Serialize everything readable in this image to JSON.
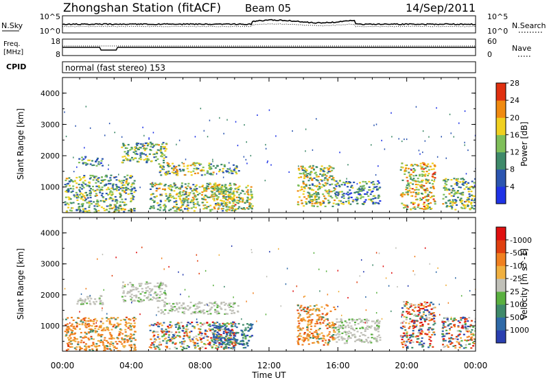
{
  "header": {
    "station": "Zhongshan Station (fitACF)",
    "beam": "Beam 05",
    "date": "14/Sep/2011"
  },
  "nsky_panel": {
    "left_label": "N.Sky",
    "right_label": "N.Search",
    "left_ticks": [
      "10^5",
      "10^0"
    ],
    "right_ticks": [
      "10^5",
      "10^0"
    ]
  },
  "freq_panel": {
    "left_label_line1": "Freq.",
    "left_label_line2": "[MHz]",
    "right_label": "Nave",
    "left_ticks": [
      "18",
      "8"
    ],
    "right_ticks": [
      "60",
      "0"
    ]
  },
  "cpid_panel": {
    "label": "CPID",
    "text": "normal (fast stereo) 153"
  },
  "time_axis": {
    "label": "Time UT",
    "ticks": [
      "00:00",
      "04:00",
      "08:00",
      "12:00",
      "16:00",
      "20:00",
      "00:00"
    ]
  },
  "range_axis": {
    "label": "Slant Range [km]",
    "ticks": [
      "1000",
      "2000",
      "3000",
      "4000"
    ]
  },
  "chart_data": [
    {
      "type": "heatmap",
      "quantity": "Power",
      "colorbar_label": "Power [dB]",
      "colorbar_ticks": [
        "4",
        "8",
        "12",
        "16",
        "20",
        "24",
        "28"
      ],
      "colorbar_colors": [
        "#1f33e6",
        "#2b55b0",
        "#3f8a6a",
        "#7fbf5a",
        "#f0d020",
        "#f08a10",
        "#e03010"
      ],
      "x_range_hours": [
        0,
        24
      ],
      "y_range_km": [
        180,
        4500
      ],
      "echo_regions": [
        {
          "t_start": 0.1,
          "t_end": 4.2,
          "r_min": 200,
          "r_max": 1400,
          "level": 0.45
        },
        {
          "t_start": 0.8,
          "t_end": 2.3,
          "r_min": 1700,
          "r_max": 2000,
          "level": 0.35
        },
        {
          "t_start": 3.4,
          "t_end": 6.0,
          "r_min": 1800,
          "r_max": 2450,
          "level": 0.45
        },
        {
          "t_start": 5.5,
          "t_end": 8.8,
          "r_min": 1400,
          "r_max": 1800,
          "level": 0.5
        },
        {
          "t_start": 8.8,
          "t_end": 10.2,
          "r_min": 1450,
          "r_max": 1750,
          "level": 0.35
        },
        {
          "t_start": 5.0,
          "t_end": 10.0,
          "r_min": 250,
          "r_max": 1150,
          "level": 0.5
        },
        {
          "t_start": 8.6,
          "t_end": 11.0,
          "r_min": 300,
          "r_max": 1100,
          "level": 0.6
        },
        {
          "t_start": 13.6,
          "t_end": 15.8,
          "r_min": 400,
          "r_max": 1700,
          "level": 0.55
        },
        {
          "t_start": 15.8,
          "t_end": 18.4,
          "r_min": 450,
          "r_max": 1250,
          "level": 0.35
        },
        {
          "t_start": 19.6,
          "t_end": 21.6,
          "r_min": 300,
          "r_max": 1800,
          "level": 0.65
        },
        {
          "t_start": 22.0,
          "t_end": 24.0,
          "r_min": 300,
          "r_max": 1300,
          "level": 0.45
        }
      ]
    },
    {
      "type": "heatmap",
      "quantity": "Velocity",
      "colorbar_label": "Velocity [m s^-1]",
      "colorbar_ticks": [
        "1000",
        "500",
        "100",
        "25",
        "-25",
        "-100",
        "-500",
        "-1000"
      ],
      "colorbar_colors": [
        "#2a3fb0",
        "#2f6aa8",
        "#3f8a6a",
        "#5ab040",
        "#c0c0b8",
        "#f0b040",
        "#f08020",
        "#e04010",
        "#e01010"
      ],
      "x_range_hours": [
        0,
        24
      ],
      "y_range_km": [
        180,
        4500
      ],
      "echo_regions": [
        {
          "t_start": 0.1,
          "t_end": 4.2,
          "r_min": 200,
          "r_max": 1300,
          "level": "negative"
        },
        {
          "t_start": 0.8,
          "t_end": 2.3,
          "r_min": 1700,
          "r_max": 2000,
          "level": "ground"
        },
        {
          "t_start": 3.4,
          "t_end": 6.0,
          "r_min": 1800,
          "r_max": 2450,
          "level": "ground"
        },
        {
          "t_start": 5.5,
          "t_end": 10.2,
          "r_min": 1400,
          "r_max": 1800,
          "level": "ground"
        },
        {
          "t_start": 5.0,
          "t_end": 10.0,
          "r_min": 250,
          "r_max": 1150,
          "level": "mixed"
        },
        {
          "t_start": 8.6,
          "t_end": 11.0,
          "r_min": 300,
          "r_max": 1100,
          "level": "positive"
        },
        {
          "t_start": 13.6,
          "t_end": 15.8,
          "r_min": 400,
          "r_max": 1700,
          "level": "negative"
        },
        {
          "t_start": 15.8,
          "t_end": 18.4,
          "r_min": 450,
          "r_max": 1250,
          "level": "ground"
        },
        {
          "t_start": 19.6,
          "t_end": 21.6,
          "r_min": 300,
          "r_max": 1800,
          "level": "mixed"
        },
        {
          "t_start": 22.0,
          "t_end": 24.0,
          "r_min": 300,
          "r_max": 1300,
          "level": "mixed"
        }
      ]
    }
  ]
}
